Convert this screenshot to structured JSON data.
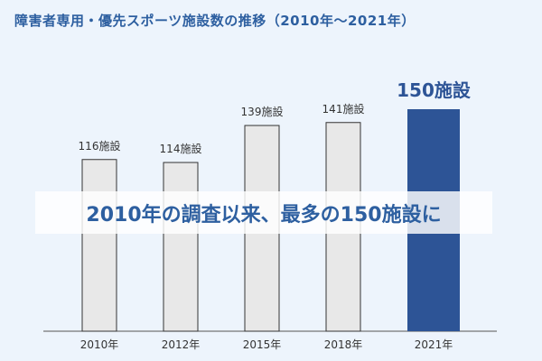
{
  "chart_data": {
    "type": "bar",
    "title": "障害者専用・優先スポーツ施設数の推移（2010年〜2021年）",
    "categories": [
      "2010年",
      "2012年",
      "2015年",
      "2018年",
      "2021年"
    ],
    "values": [
      116,
      114,
      139,
      141,
      150
    ],
    "value_labels": [
      "116施設",
      "114施設",
      "139施設",
      "141施設",
      "150施設"
    ],
    "highlight_index": 4,
    "annotation": "2010年の調査以来、最多の150施設に",
    "xlabel": "",
    "ylabel": "",
    "ylim": [
      0,
      150
    ],
    "grid": false,
    "legend": "none"
  },
  "colors": {
    "background": "#edf4fc",
    "bar_fill": "#e8e8e8",
    "bar_stroke": "#333333",
    "highlight_fill": "#2d5496",
    "title": "#2d5fa0",
    "annotation": "#2d5fa0",
    "axis": "#555555",
    "label": "#333333",
    "highlight_label": "#2d5496"
  }
}
